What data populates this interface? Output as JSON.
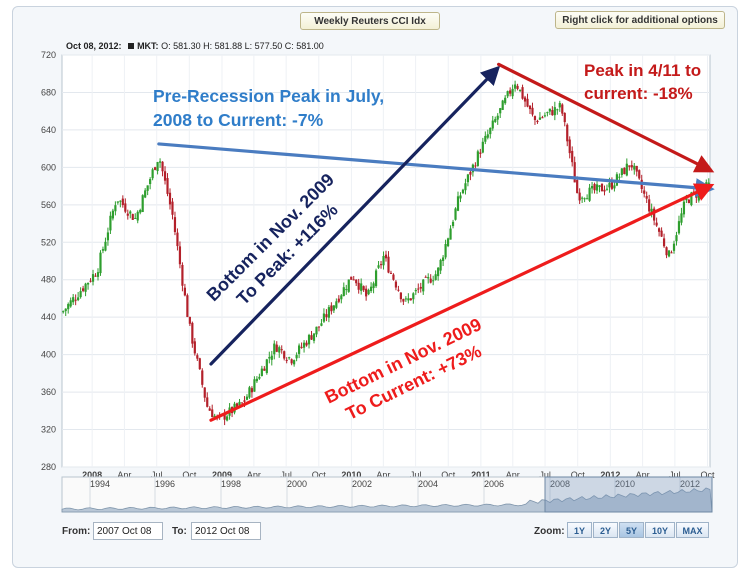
{
  "header": {
    "title_button": "Weekly Reuters CCI Idx",
    "options_button": "Right click for additional options"
  },
  "quote": {
    "date": "Oct 08, 2012:",
    "symbol": "MKT:",
    "open": "O: 581.30",
    "high": "H: 581.88",
    "low": "L: 577.50",
    "close": "C: 581.00"
  },
  "controls": {
    "from_label": "From:",
    "from_value": "2007 Oct 08",
    "to_label": "To:",
    "to_value": "2012 Oct 08",
    "zoom_label": "Zoom:",
    "zoom_options": [
      "1Y",
      "2Y",
      "5Y",
      "10Y",
      "MAX"
    ],
    "zoom_selected": "5Y"
  },
  "chart_data": {
    "type": "candlestick",
    "ylim": [
      280,
      720
    ],
    "yticks": [
      280,
      320,
      360,
      400,
      440,
      480,
      520,
      560,
      600,
      640,
      680,
      720
    ],
    "x_tick_labels": [
      "2008",
      "Apr",
      "Jul",
      "Oct",
      "2009",
      "Apr",
      "Jul",
      "Oct",
      "2010",
      "Apr",
      "Jul",
      "Oct",
      "2011",
      "Apr",
      "Jul",
      "Oct",
      "2012",
      "Apr",
      "Jul",
      "Oct"
    ],
    "key_points": [
      {
        "date": "2007-10-08",
        "value": 445
      },
      {
        "date": "2008-01-15",
        "value": 490
      },
      {
        "date": "2008-03-10",
        "value": 568
      },
      {
        "date": "2008-05-01",
        "value": 545
      },
      {
        "date": "2008-07-07",
        "value": 613
      },
      {
        "date": "2008-08-15",
        "value": 548
      },
      {
        "date": "2008-10-01",
        "value": 430
      },
      {
        "date": "2008-11-20",
        "value": 345
      },
      {
        "date": "2008-12-20",
        "value": 330
      },
      {
        "date": "2009-03-01",
        "value": 348
      },
      {
        "date": "2009-06-01",
        "value": 410
      },
      {
        "date": "2009-07-15",
        "value": 395
      },
      {
        "date": "2009-10-01",
        "value": 430
      },
      {
        "date": "2010-01-05",
        "value": 485
      },
      {
        "date": "2010-02-15",
        "value": 460
      },
      {
        "date": "2010-04-01",
        "value": 505
      },
      {
        "date": "2010-06-01",
        "value": 455
      },
      {
        "date": "2010-08-01",
        "value": 478
      },
      {
        "date": "2010-09-01",
        "value": 488
      },
      {
        "date": "2010-11-01",
        "value": 568
      },
      {
        "date": "2011-01-01",
        "value": 620
      },
      {
        "date": "2011-04-08",
        "value": 692
      },
      {
        "date": "2011-06-01",
        "value": 650
      },
      {
        "date": "2011-08-15",
        "value": 665
      },
      {
        "date": "2011-10-01",
        "value": 570
      },
      {
        "date": "2012-01-01",
        "value": 580
      },
      {
        "date": "2012-02-28",
        "value": 605
      },
      {
        "date": "2012-06-15",
        "value": 505
      },
      {
        "date": "2012-08-01",
        "value": 565
      },
      {
        "date": "2012-10-08",
        "value": 581
      }
    ],
    "trendlines": [
      {
        "name": "pre-recession-line",
        "color": "#4a7cc0",
        "from": {
          "date": "2008-07-07",
          "value": 625
        },
        "to": {
          "date": "2012-10-08",
          "value": 577
        }
      },
      {
        "name": "bottom-to-peak-arrow",
        "color": "#16235e",
        "from": {
          "date": "2008-12-01",
          "value": 390
        },
        "to": {
          "date": "2011-02-15",
          "value": 705
        }
      },
      {
        "name": "bottom-to-current-arrow",
        "color": "#ee1c1c",
        "from": {
          "date": "2008-12-01",
          "value": 330
        },
        "to": {
          "date": "2012-10-08",
          "value": 580
        }
      },
      {
        "name": "peak-to-current-arrow",
        "color": "#c41a1a",
        "from": {
          "date": "2011-02-20",
          "value": 710
        },
        "to": {
          "date": "2012-10-08",
          "value": 597
        }
      }
    ],
    "annotations": [
      {
        "name": "pre-recession-annotation",
        "lines": [
          "Pre-Recession Peak in July,",
          "2008 to Current: -7%"
        ],
        "color": "#2f7dc9"
      },
      {
        "name": "nov-2009-to-peak-annotation",
        "lines": [
          "Bottom in Nov. 2009",
          "To Peak:  +116%"
        ],
        "color": "#16235e"
      },
      {
        "name": "nov-2009-to-current-annotation",
        "lines": [
          "Bottom in Nov. 2009",
          "To Current: +73%"
        ],
        "color": "#ee1c1c"
      },
      {
        "name": "peak-to-current-annotation",
        "lines": [
          "Peak in 4/11 to",
          "current: -18%"
        ],
        "color": "#c41a1a"
      }
    ],
    "navigator": {
      "year_labels": [
        "1994",
        "1996",
        "1998",
        "2000",
        "2002",
        "2004",
        "2006",
        "2008",
        "2010",
        "2012"
      ]
    }
  }
}
